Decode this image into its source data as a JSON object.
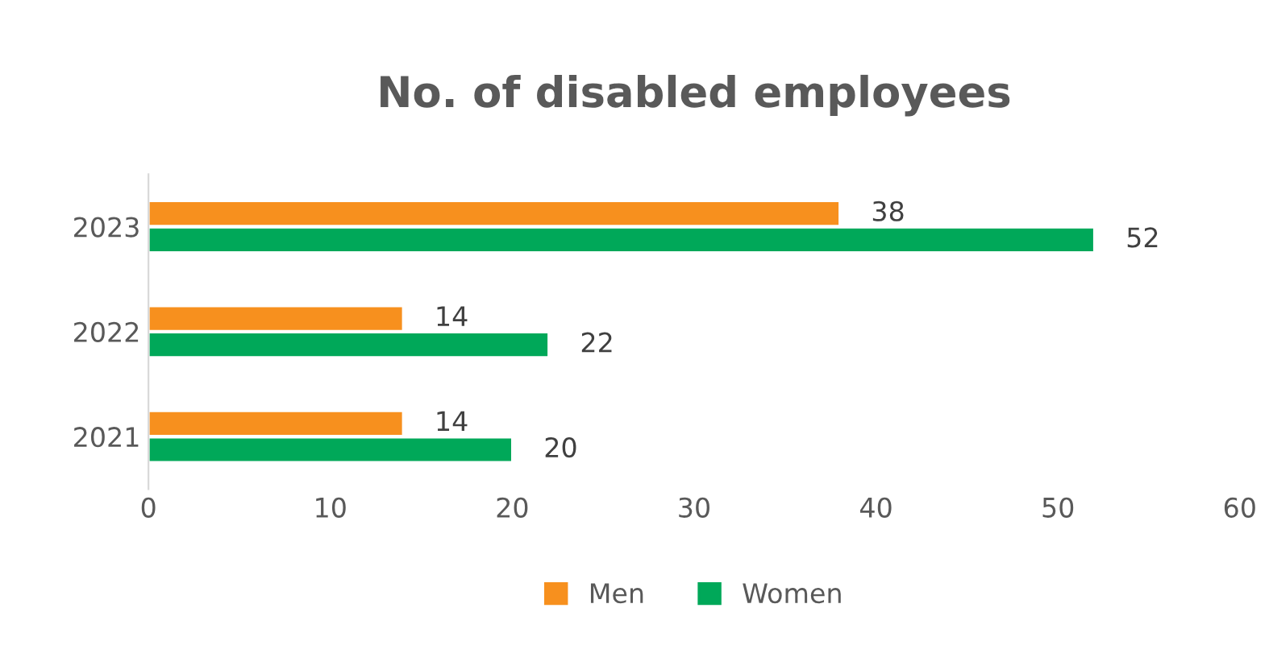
{
  "chart_data": {
    "type": "bar",
    "orientation": "horizontal",
    "title": "No. of disabled employees",
    "categories": [
      "2023",
      "2022",
      "2021"
    ],
    "series": [
      {
        "name": "Men",
        "color": "#f7901e",
        "values": [
          38,
          14,
          14
        ]
      },
      {
        "name": "Women",
        "color": "#00a859",
        "values": [
          52,
          22,
          20
        ]
      }
    ],
    "xlim": [
      0,
      60
    ],
    "xticks": [
      0,
      10,
      20,
      30,
      40,
      50,
      60
    ],
    "grid": false,
    "legend": "bottom",
    "data_labels": true
  }
}
